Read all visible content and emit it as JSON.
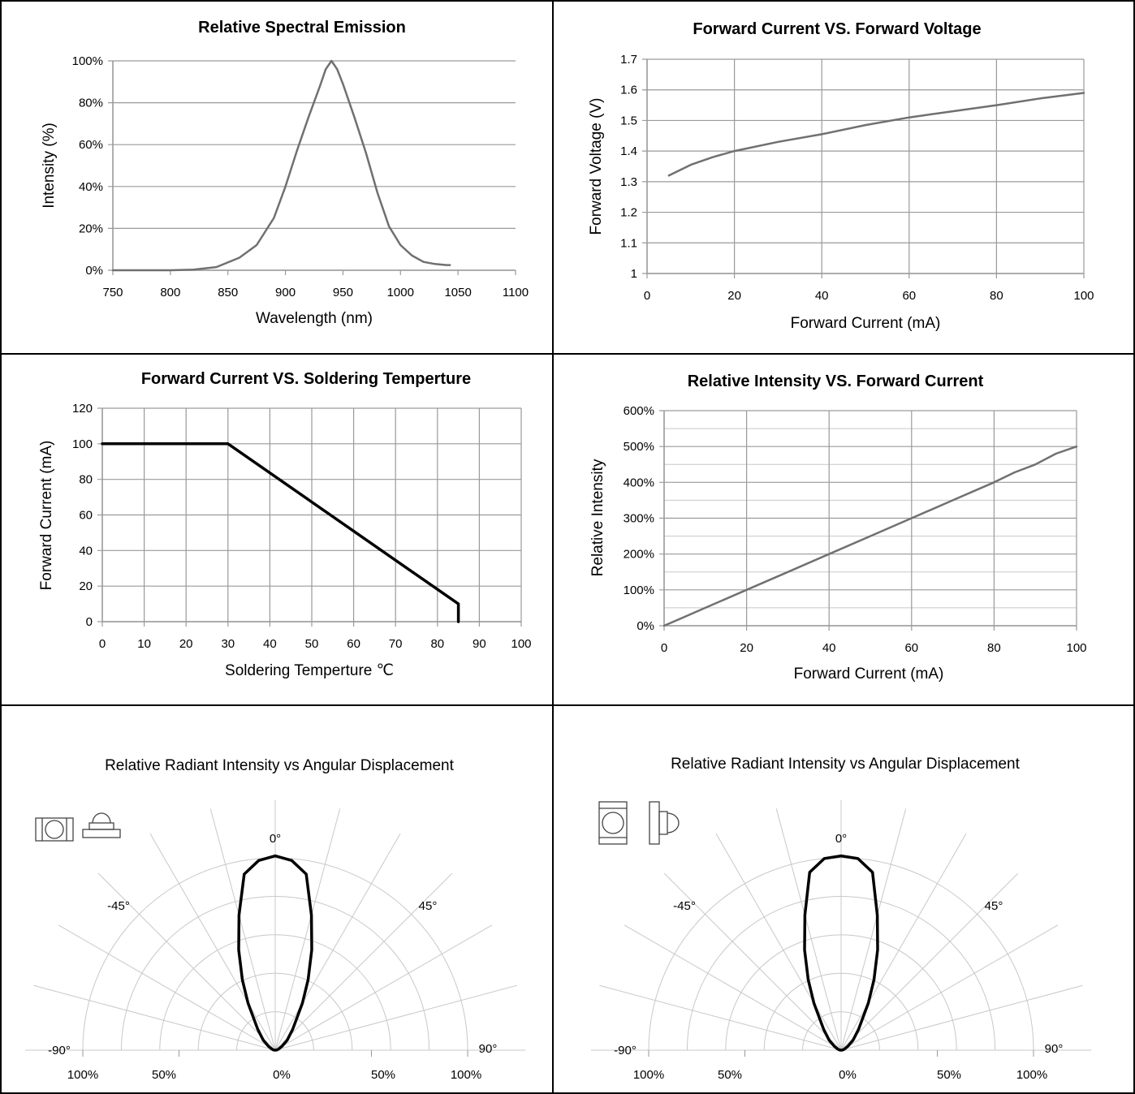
{
  "chart_data": [
    {
      "type": "line",
      "title": "Relative Spectral Emission",
      "xlabel": "Wavelength (nm)",
      "ylabel": "Intensity (%)",
      "xlim": [
        750,
        1100
      ],
      "ylim": [
        0,
        100
      ],
      "x_ticks": [
        "750",
        "800",
        "850",
        "900",
        "950",
        "1000",
        "1050",
        "1100"
      ],
      "y_ticks": [
        "0%",
        "20%",
        "40%",
        "60%",
        "80%",
        "100%"
      ],
      "grid": "horizontal",
      "line_color": "#707070",
      "series": [
        {
          "x": [
            750,
            800,
            820,
            840,
            860,
            875,
            890,
            900,
            910,
            920,
            930,
            935,
            940,
            945,
            950,
            960,
            970,
            980,
            990,
            1000,
            1010,
            1020,
            1030,
            1040,
            1043
          ],
          "y": [
            0,
            0,
            0.3,
            1.5,
            6,
            12,
            25,
            40,
            57,
            73,
            88,
            96,
            100,
            96,
            89,
            73,
            56,
            37,
            21,
            12,
            7,
            4,
            3,
            2.5,
            2.5
          ]
        }
      ]
    },
    {
      "type": "line",
      "title": "Forward Current VS. Forward Voltage",
      "xlabel": "Forward Current (mA)",
      "ylabel": "Forward Voltage  (V)",
      "xlim": [
        0,
        100
      ],
      "ylim": [
        1,
        1.7
      ],
      "x_ticks": [
        "0",
        "20",
        "40",
        "60",
        "80",
        "100"
      ],
      "y_ticks": [
        "1",
        "1.1",
        "1.2",
        "1.3",
        "1.4",
        "1.5",
        "1.6",
        "1.7"
      ],
      "grid": "both",
      "line_color": "#707070",
      "series": [
        {
          "x": [
            5,
            10,
            15,
            20,
            30,
            40,
            50,
            60,
            70,
            80,
            90,
            100
          ],
          "y": [
            1.32,
            1.355,
            1.38,
            1.4,
            1.43,
            1.455,
            1.485,
            1.51,
            1.53,
            1.55,
            1.572,
            1.59
          ]
        }
      ]
    },
    {
      "type": "line",
      "title": "Forward Current  VS. Soldering Temperture",
      "xlabel": "Soldering Temperture ℃",
      "ylabel": "Forward Current (mA)",
      "xlim": [
        0,
        100
      ],
      "ylim": [
        0,
        120
      ],
      "x_ticks": [
        "0",
        "10",
        "20",
        "30",
        "40",
        "50",
        "60",
        "70",
        "80",
        "90",
        "100"
      ],
      "y_ticks": [
        "0",
        "20",
        "40",
        "60",
        "80",
        "100",
        "120"
      ],
      "grid": "both",
      "line_color": "#000000",
      "series": [
        {
          "x": [
            0,
            30,
            85,
            85
          ],
          "y": [
            100,
            100,
            10,
            0
          ]
        }
      ]
    },
    {
      "type": "line",
      "title": "Relative Intensity VS. Forward Current",
      "xlabel": "Forward Current (mA)",
      "ylabel": "Relative Intensity",
      "xlim": [
        0,
        100
      ],
      "ylim": [
        0,
        600
      ],
      "x_ticks": [
        "0",
        "20",
        "40",
        "60",
        "80",
        "100"
      ],
      "y_ticks": [
        "0%",
        "100%",
        "200%",
        "300%",
        "400%",
        "500%",
        "600%"
      ],
      "grid": "both",
      "line_color": "#707070",
      "series": [
        {
          "x": [
            0,
            5,
            10,
            20,
            30,
            40,
            50,
            60,
            70,
            80,
            85,
            90,
            95,
            100
          ],
          "y": [
            0,
            25,
            50,
            100,
            150,
            200,
            250,
            300,
            350,
            400,
            428,
            450,
            480,
            500
          ]
        }
      ]
    },
    {
      "type": "polar",
      "title": "Relative Radiant Intensity vs Angular Displacement",
      "angle_labels": [
        "0°",
        "-45°",
        "45°",
        "-90°",
        "90°"
      ],
      "radius_labels": [
        "100%",
        "50%",
        "0%",
        "50%",
        "100%"
      ],
      "line_color": "#000000",
      "series": [
        {
          "angle": [
            0,
            -5,
            -10,
            -15,
            -20,
            -25,
            -30,
            -40,
            -50,
            -60,
            -70,
            -80,
            -90,
            5,
            10,
            15,
            20,
            25,
            30,
            40,
            50,
            60,
            70,
            80,
            90
          ],
          "value": [
            100,
            98,
            92,
            72,
            55,
            40,
            28,
            14,
            8,
            4,
            2,
            1,
            0,
            98,
            92,
            72,
            55,
            40,
            28,
            14,
            8,
            4,
            2,
            1,
            0
          ]
        }
      ]
    },
    {
      "type": "polar",
      "title": "Relative Radiant Intensity vs Angular Displacement",
      "angle_labels": [
        "0°",
        "-45°",
        "45°",
        "-90°",
        "90°"
      ],
      "radius_labels": [
        "100%",
        "50%",
        "0%",
        "50%",
        "100%"
      ],
      "line_color": "#000000",
      "series": [
        {
          "angle": [
            0,
            -5,
            -10,
            -15,
            -20,
            -25,
            -30,
            -40,
            -50,
            -60,
            -70,
            -80,
            -90,
            5,
            10,
            15,
            20,
            25,
            30,
            40,
            50,
            60,
            70,
            80,
            90
          ],
          "value": [
            100,
            99,
            93,
            72,
            55,
            40,
            28,
            14,
            8,
            4,
            2,
            1,
            0,
            99,
            93,
            72,
            55,
            40,
            28,
            14,
            8,
            4,
            2,
            1,
            0
          ]
        }
      ]
    }
  ]
}
